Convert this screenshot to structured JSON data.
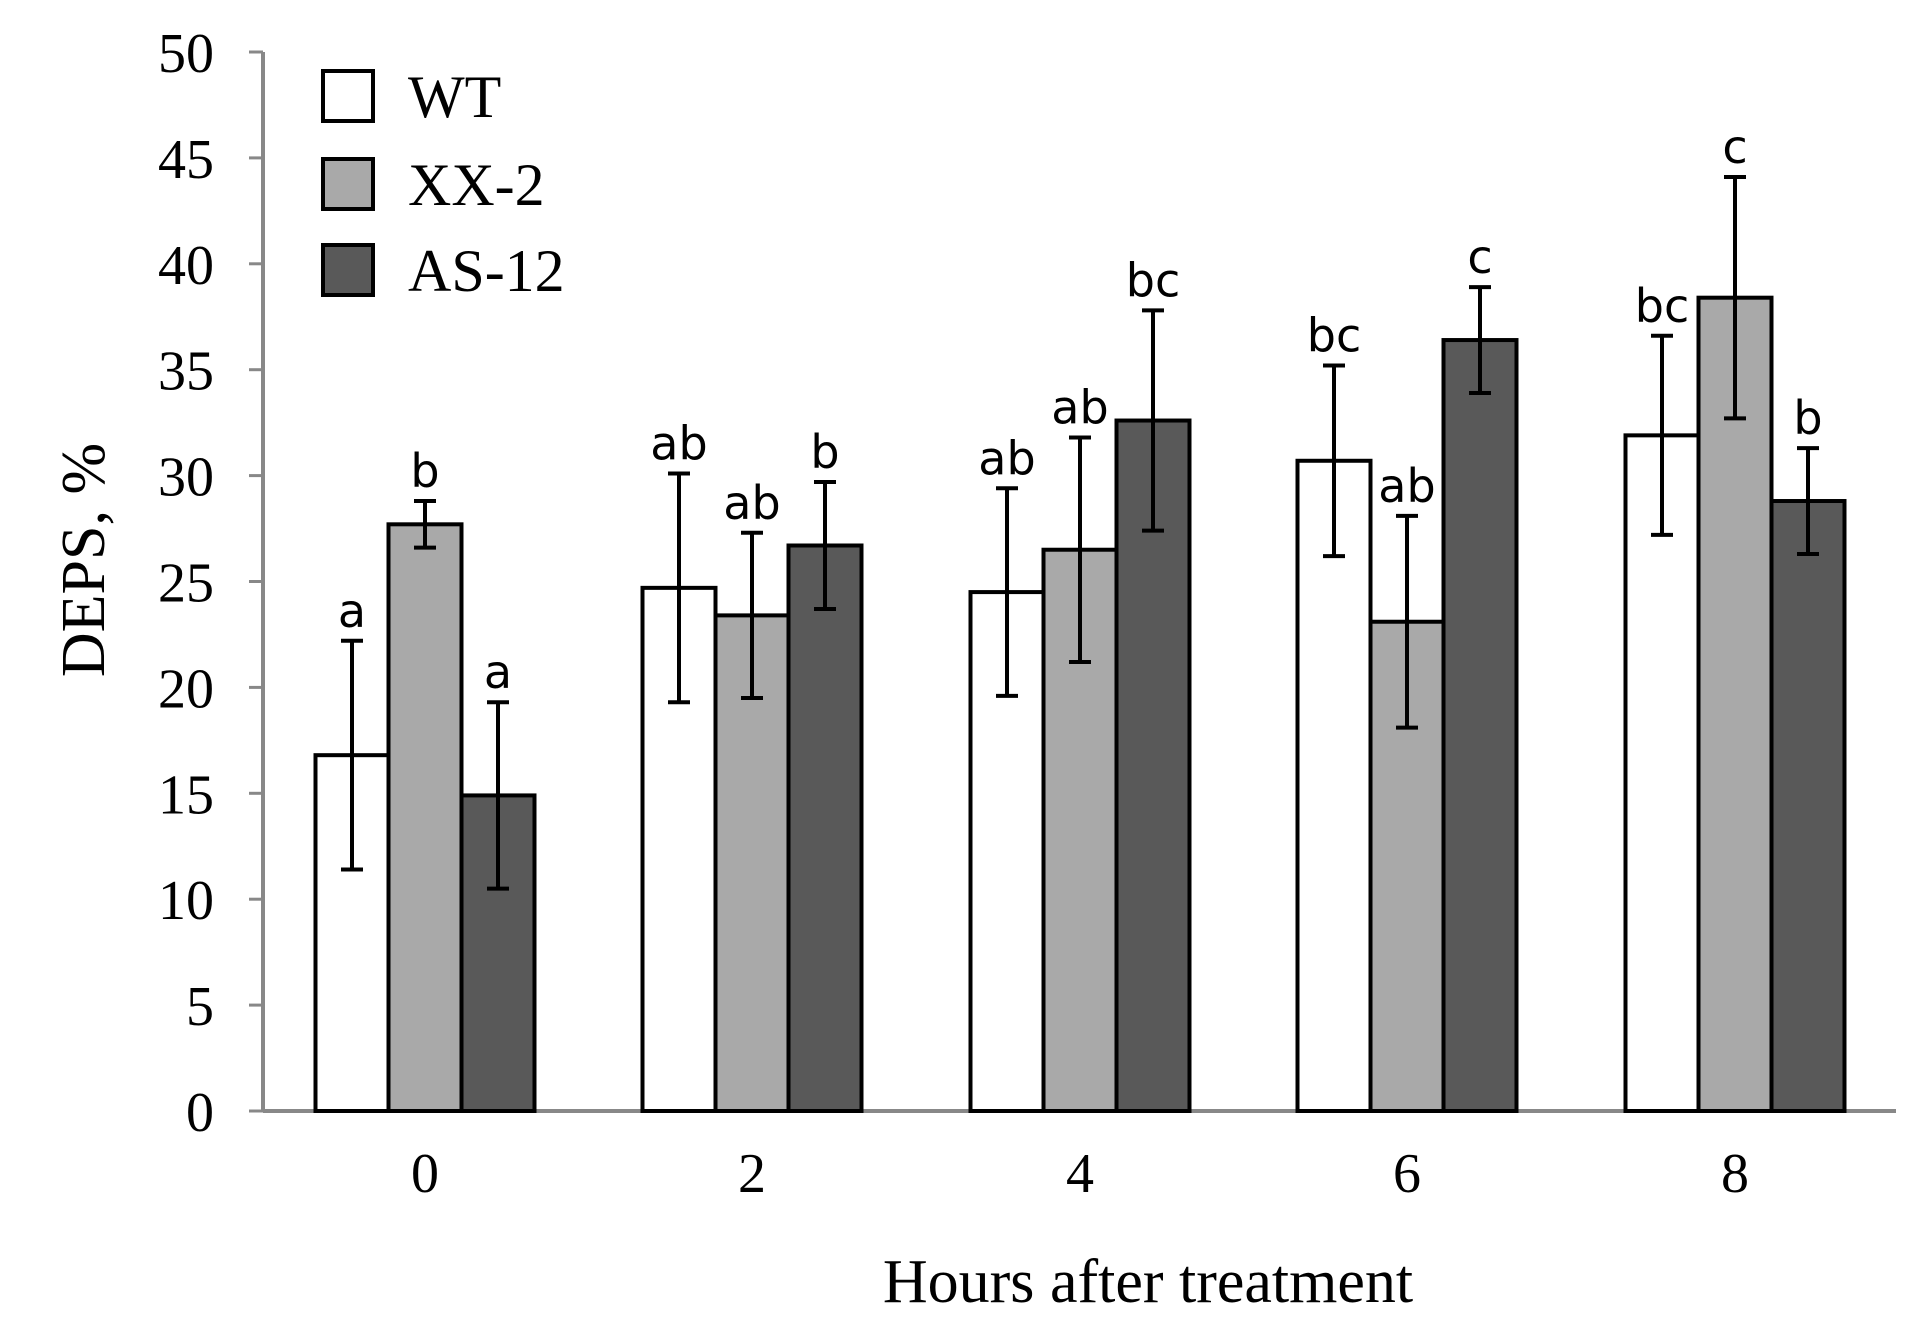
{
  "chart_data": {
    "type": "bar",
    "title": "",
    "xlabel": "Hours after treatment",
    "ylabel": "DEPS, %",
    "ylim": [
      0,
      50
    ],
    "ytick_step": 5,
    "yticks": [
      "0",
      "5",
      "10",
      "15",
      "20",
      "25",
      "30",
      "35",
      "40",
      "45",
      "50"
    ],
    "categories": [
      "0",
      "2",
      "4",
      "6",
      "8"
    ],
    "grid": false,
    "legend_position": "top-left",
    "series": [
      {
        "name": "WT",
        "color": "#ffffff",
        "values": [
          16.8,
          24.7,
          24.5,
          30.7,
          31.9
        ],
        "errors": [
          5.4,
          5.4,
          4.9,
          4.5,
          4.7
        ],
        "letters": [
          "a",
          "ab",
          "ab",
          "bc",
          "bc"
        ]
      },
      {
        "name": "XX-2",
        "color": "#a9a9a9",
        "values": [
          27.7,
          23.4,
          26.5,
          23.1,
          38.4
        ],
        "errors": [
          1.1,
          3.9,
          5.3,
          5.0,
          5.7
        ],
        "letters": [
          "b",
          "ab",
          "ab",
          "ab",
          "c"
        ]
      },
      {
        "name": "AS-12",
        "color": "#595959",
        "values": [
          14.9,
          26.7,
          32.6,
          36.4,
          28.8
        ],
        "errors": [
          4.4,
          3.0,
          5.2,
          2.5,
          2.5
        ],
        "letters": [
          "a",
          "b",
          "bc",
          "c",
          "b"
        ]
      }
    ]
  }
}
